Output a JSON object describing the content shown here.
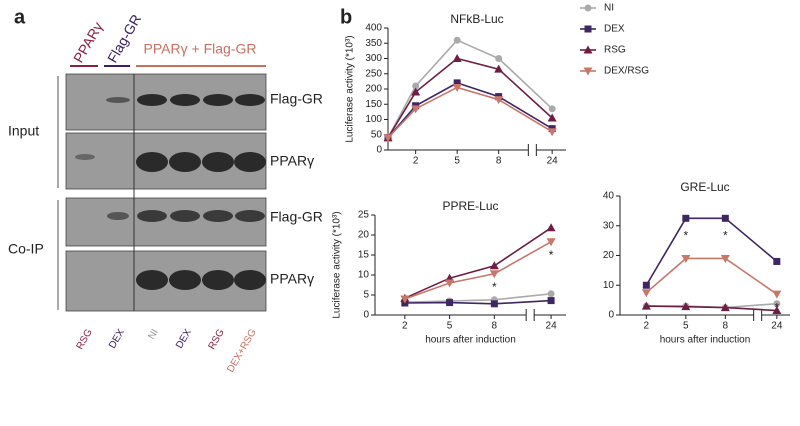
{
  "figure": {
    "panel_a": {
      "label": "a",
      "headers": [
        "PPARγ",
        "Flag-GR",
        "PPARγ + Flag-GR"
      ],
      "rows": [
        "Input",
        "Co-IP"
      ],
      "bands": [
        "Flag-GR",
        "PPARγ",
        "Flag-GR",
        "PPARγ"
      ],
      "lanes": [
        "RSG",
        "DEX",
        "NI",
        "DEX",
        "RSG",
        "DEX+RSG"
      ]
    },
    "panel_b": {
      "label": "b"
    }
  },
  "chart_data": [
    {
      "type": "line",
      "title": "NFkB-Luc",
      "ylabel": "Luciferase activity (*10³)",
      "x": [
        0,
        2,
        5,
        8,
        24
      ],
      "xlim": [
        0,
        25
      ],
      "x_break": [
        10,
        23
      ],
      "xticks": [
        2,
        5,
        8,
        24
      ],
      "ylim": [
        0,
        400
      ],
      "yticks": [
        0,
        50,
        100,
        150,
        200,
        250,
        300,
        350,
        400
      ],
      "legend": "right",
      "series": [
        {
          "name": "NI",
          "color": "#aaaaaa",
          "marker": "circle",
          "values": [
            40,
            210,
            360,
            300,
            135
          ]
        },
        {
          "name": "DEX",
          "color": "#3d2663",
          "marker": "square",
          "values": [
            40,
            145,
            220,
            175,
            70
          ]
        },
        {
          "name": "RSG",
          "color": "#6e1e45",
          "marker": "triangle",
          "values": [
            40,
            190,
            300,
            265,
            105
          ]
        },
        {
          "name": "DEX/RSG",
          "color": "#c9776a",
          "marker": "triangle-down",
          "values": [
            40,
            135,
            205,
            165,
            60
          ]
        }
      ]
    },
    {
      "type": "line",
      "title": "PPRE-Luc",
      "ylabel": "Luciferase activity (*10³)",
      "xlabel": "hours after induction",
      "x": [
        2,
        5,
        8,
        24
      ],
      "xlim": [
        0,
        25
      ],
      "x_break": [
        10,
        23
      ],
      "xticks": [
        2,
        5,
        8,
        24
      ],
      "ylim": [
        0,
        25
      ],
      "yticks": [
        0,
        5,
        10,
        15,
        20,
        25
      ],
      "series": [
        {
          "color": "#aaaaaa",
          "marker": "circle",
          "values": [
            3.2,
            3.5,
            3.8,
            5.3
          ]
        },
        {
          "color": "#3d2663",
          "marker": "square",
          "values": [
            3,
            3.1,
            2.8,
            3.6
          ]
        },
        {
          "color": "#6e1e45",
          "marker": "triangle",
          "values": [
            4.2,
            9.2,
            12.3,
            21.8
          ]
        },
        {
          "color": "#c9776a",
          "marker": "triangle-down",
          "values": [
            4,
            8,
            10.3,
            18.3
          ]
        }
      ],
      "annotations": [
        {
          "text": "*",
          "x": 8,
          "series": 3
        },
        {
          "text": "*",
          "x": 24,
          "series": 3
        }
      ]
    },
    {
      "type": "line",
      "title": "GRE-Luc",
      "xlabel": "hours after induction",
      "x": [
        2,
        5,
        8,
        24
      ],
      "xlim": [
        0,
        25
      ],
      "x_break": [
        10,
        23
      ],
      "xticks": [
        2,
        5,
        8,
        24
      ],
      "ylim": [
        0,
        40
      ],
      "yticks": [
        0,
        10,
        20,
        30,
        40
      ],
      "series": [
        {
          "color": "#aaaaaa",
          "marker": "circle",
          "values": [
            3,
            3,
            2.5,
            3.8
          ]
        },
        {
          "color": "#3d2663",
          "marker": "square",
          "values": [
            10,
            32.5,
            32.5,
            18
          ]
        },
        {
          "color": "#6e1e45",
          "marker": "triangle",
          "values": [
            3,
            2.8,
            2.5,
            1.5
          ]
        },
        {
          "color": "#c9776a",
          "marker": "triangle-down",
          "values": [
            7.5,
            19,
            19,
            7
          ]
        }
      ],
      "annotations": [
        {
          "text": "*",
          "x": 5,
          "series": 3
        },
        {
          "text": "*",
          "x": 8,
          "series": 3
        },
        {
          "text": "*",
          "x": 24,
          "series": 3
        }
      ]
    }
  ]
}
